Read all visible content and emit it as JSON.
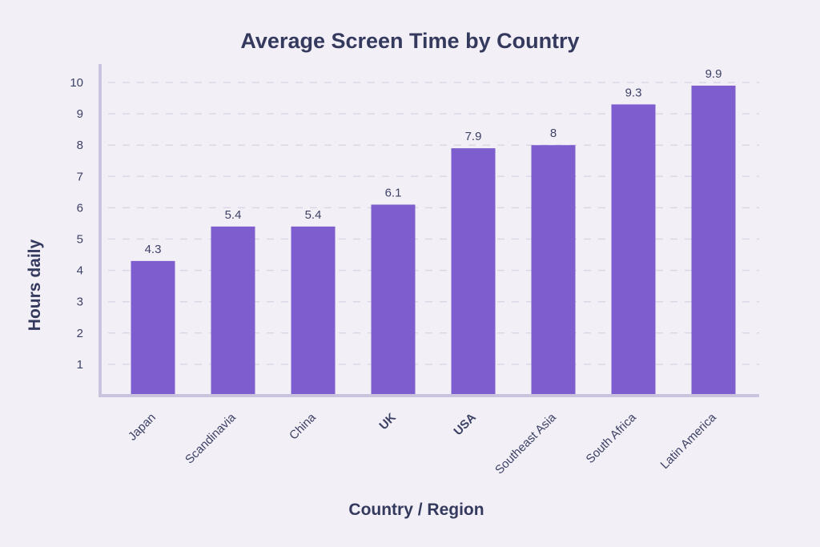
{
  "chart_data": {
    "type": "bar",
    "title": "Average Screen Time by Country",
    "xlabel": "Country / Region",
    "ylabel": "Hours daily",
    "categories": [
      "Japan",
      "Scandinavia",
      "China",
      "UK",
      "USA",
      "Southeast Asia",
      "South Africa",
      "Latin America"
    ],
    "bold_categories": [
      "UK",
      "USA"
    ],
    "values": [
      4.3,
      5.4,
      5.4,
      6.1,
      7.9,
      8,
      9.3,
      9.9
    ],
    "value_labels": [
      "4.3",
      "5.4",
      "5.4",
      "6.1",
      "7.9",
      "8",
      "9.3",
      "9.9"
    ],
    "yticks": [
      1,
      2,
      3,
      4,
      5,
      6,
      7,
      8,
      9,
      10
    ],
    "ylim": [
      0,
      10
    ],
    "grid": true,
    "colors": {
      "bar": "#7e5ecf",
      "axis": "#c9c3dd",
      "grid": "#dcd7e6",
      "text": "#34395e",
      "background": "#f3eff6"
    }
  }
}
